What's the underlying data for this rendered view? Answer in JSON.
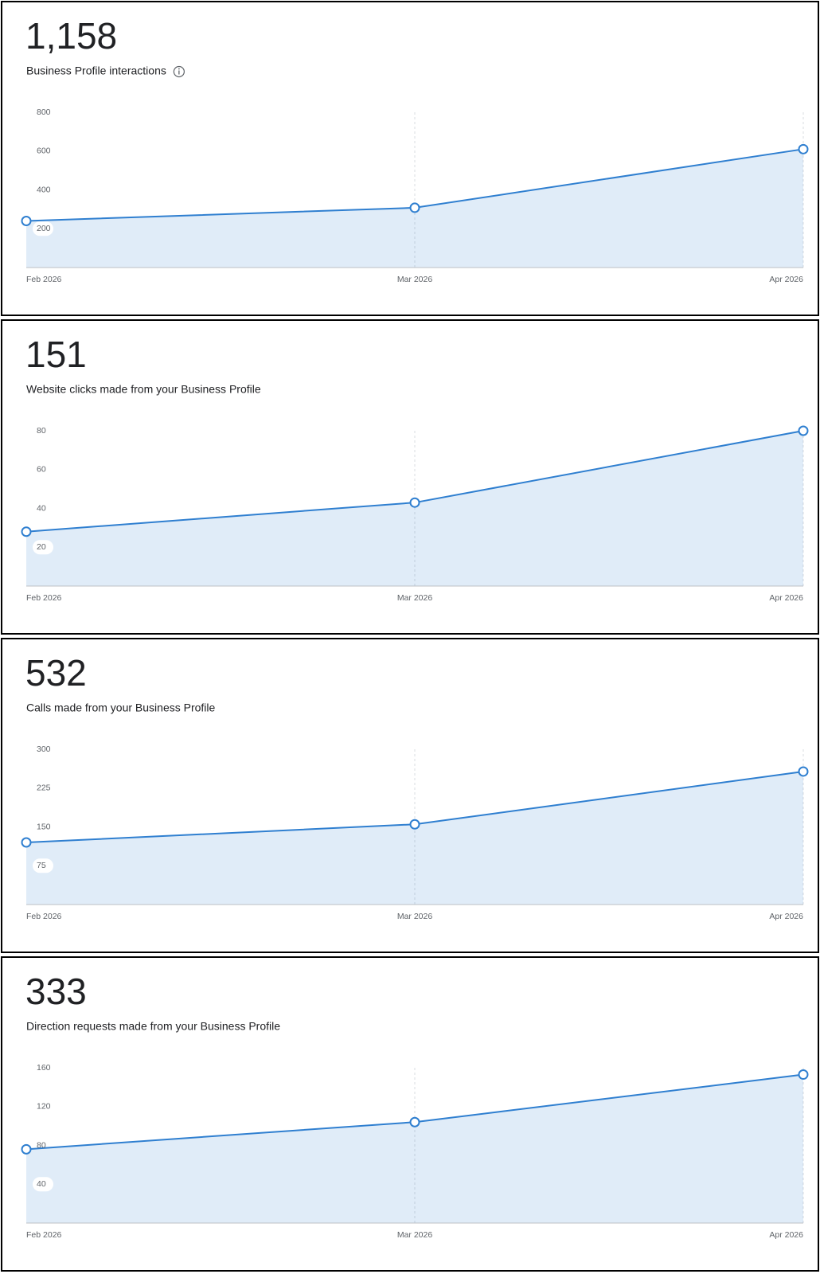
{
  "chart_data": [
    {
      "type": "area",
      "total": "1,158",
      "title": "Business Profile interactions",
      "info_icon": true,
      "categories": [
        "Feb 2026",
        "Mar 2026",
        "Apr 2026"
      ],
      "values": [
        240,
        308,
        610
      ],
      "color": "#2f7fd0",
      "ylim": [
        0,
        800
      ],
      "yticks": [
        200,
        400,
        600,
        800
      ],
      "grid": true
    },
    {
      "type": "area",
      "total": "151",
      "title": "Website clicks made from your Business Profile",
      "categories": [
        "Feb 2026",
        "Mar 2026",
        "Apr 2026"
      ],
      "values": [
        28,
        43,
        80
      ],
      "color": "#2f7fd0",
      "ylim": [
        0,
        80
      ],
      "yticks": [
        20,
        40,
        60,
        80
      ],
      "grid": true
    },
    {
      "type": "area",
      "total": "532",
      "title": "Calls made from your Business Profile",
      "categories": [
        "Feb 2026",
        "Mar 2026",
        "Apr 2026"
      ],
      "values": [
        120,
        155,
        257
      ],
      "color": "#2f7fd0",
      "ylim": [
        0,
        300
      ],
      "yticks": [
        75,
        150,
        225,
        300
      ],
      "grid": true
    },
    {
      "type": "area",
      "total": "333",
      "title": "Direction requests made from your Business Profile",
      "categories": [
        "Feb 2026",
        "Mar 2026",
        "Apr 2026"
      ],
      "values": [
        76,
        104,
        153
      ],
      "color": "#2f7fd0",
      "ylim": [
        0,
        160
      ],
      "yticks": [
        40,
        80,
        120,
        160
      ],
      "grid": true
    }
  ]
}
